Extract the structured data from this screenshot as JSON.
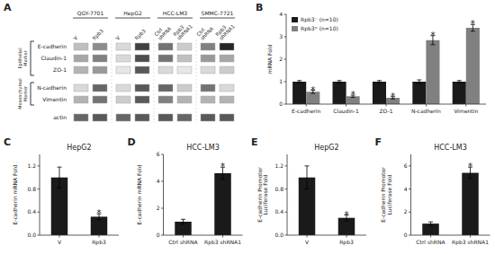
{
  "chart_data": [
    {
      "type": "heatmap",
      "panel_label": "A",
      "rows": [
        "E-cadherin",
        "Claudin-1",
        "ZO-1",
        "N-cadherin",
        "Vimentin",
        "actin"
      ],
      "columns": [
        "V",
        "Rpb3",
        "V",
        "Rpb3",
        "Ctrl\nshRNA",
        "Rpb3\nshRNA1",
        "Ctrl\nshRNA",
        "Rpb3\nshRNA1"
      ],
      "column_groups": [
        "QGY-7701",
        "HepG2",
        "HCC-LM3",
        "SMMC-7721"
      ],
      "row_groups": [
        {
          "label": "Epithelial\nMarker",
          "rows": [
            "E-cadherin",
            "Claudin-1",
            "ZO-1"
          ]
        },
        {
          "label": "Mesenchymal\nMarker",
          "rows": [
            "N-cadherin",
            "Vimentin"
          ]
        }
      ],
      "cells": [
        [
          0.25,
          0.45,
          0.15,
          0.75,
          0.55,
          0.2,
          0.5,
          0.85
        ],
        [
          0.35,
          0.5,
          0.15,
          0.7,
          0.55,
          0.25,
          0.4,
          0.35
        ],
        [
          0.3,
          0.4,
          0.1,
          0.65,
          0.15,
          0.1,
          0.15,
          0.2
        ],
        [
          0.15,
          0.6,
          0.15,
          0.65,
          0.6,
          0.2,
          0.55,
          0.15
        ],
        [
          0.3,
          0.55,
          0.2,
          0.65,
          0.5,
          0.3,
          0.3,
          0.3
        ],
        [
          0.6,
          0.65,
          0.6,
          0.65,
          0.65,
          0.6,
          0.65,
          0.65
        ]
      ]
    },
    {
      "type": "bar",
      "panel_label": "B",
      "categories": [
        "E-cadherin",
        "Claudin-1",
        "ZO-1",
        "N-cadherin",
        "Vimentin"
      ],
      "series": [
        {
          "name": "Rpb3⁻  (n=10)",
          "color": "#1a1a1a",
          "values": [
            1.0,
            1.0,
            1.0,
            1.0,
            1.0
          ],
          "errors": [
            0.05,
            0.05,
            0.05,
            0.08,
            0.05
          ]
        },
        {
          "name": "Rpb3⁺  (n=10)",
          "color": "#808080",
          "values": [
            0.55,
            0.35,
            0.28,
            2.85,
            3.4
          ],
          "errors": [
            0.07,
            0.05,
            0.05,
            0.2,
            0.15
          ],
          "significance": [
            "*",
            "*",
            "*",
            "*",
            "*"
          ]
        }
      ],
      "ylabel": "mRNA Fold",
      "ylim": [
        0,
        4
      ],
      "yticks": [
        0,
        1,
        2,
        3,
        4
      ],
      "legend": "upper left"
    },
    {
      "type": "bar",
      "panel_label": "C",
      "title": "HepG2",
      "categories": [
        "V",
        "Rpb3"
      ],
      "values": [
        1.0,
        0.32
      ],
      "errors": [
        0.18,
        0.05
      ],
      "significance": [
        null,
        "*"
      ],
      "color": "#1a1a1a",
      "ylim": [
        0,
        1.4
      ],
      "yticks": [
        {
          "value": 0,
          "label": "0.0"
        },
        0.4,
        0.8,
        1.2
      ],
      "ylabel": "E-cadherin mRNA Fold"
    },
    {
      "type": "bar",
      "panel_label": "D",
      "title": "HCC-LM3",
      "categories": [
        "Ctrl shRNA",
        "Rpb3 shRNA1"
      ],
      "values": [
        1.0,
        4.6
      ],
      "errors": [
        0.18,
        0.45
      ],
      "significance": [
        null,
        "*"
      ],
      "color": "#1a1a1a",
      "ylim": [
        0,
        6
      ],
      "yticks": [
        0,
        2,
        4,
        6
      ],
      "ylabel": "E-cadherin mRNA Fold"
    },
    {
      "type": "bar",
      "panel_label": "E",
      "title": "HepG2",
      "categories": [
        "V",
        "Rpb3"
      ],
      "values": [
        1.0,
        0.3
      ],
      "errors": [
        0.2,
        0.05
      ],
      "significance": [
        null,
        "*"
      ],
      "color": "#1a1a1a",
      "ylim": [
        0,
        1.4
      ],
      "yticks": [
        {
          "value": 0,
          "label": "0.0"
        },
        0.4,
        0.8,
        1.2
      ],
      "ylabel": "E-cadherin Promotor\nLuciferase Fold"
    },
    {
      "type": "bar",
      "panel_label": "F",
      "title": "HCC-LM3",
      "categories": [
        "Ctrl shRNA",
        "Rpb3 shRNA1"
      ],
      "values": [
        1.0,
        5.4
      ],
      "errors": [
        0.15,
        0.5
      ],
      "significance": [
        null,
        "*"
      ],
      "color": "#1a1a1a",
      "ylim": [
        0,
        7
      ],
      "yticks": [
        0,
        2,
        4,
        6
      ],
      "ylabel": "E-cadherin Promotor\nLuciferase Fold"
    }
  ]
}
